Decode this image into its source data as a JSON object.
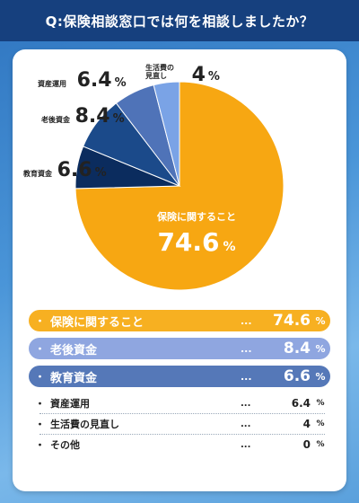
{
  "header": {
    "title": "Q:保険相談窓口では何を相談しましたか？"
  },
  "labels": {
    "percent": "%",
    "bullet": "・",
    "dots": "..."
  },
  "colors": {
    "header": "#16407e",
    "slices": [
      "#f7a712",
      "#4f73b8",
      "#133f7d",
      "#0b2c5e",
      "#4f73b8",
      "#7aa3e6",
      "#cfd8e6"
    ],
    "rows": [
      "#f7b021",
      "#8fa6e0",
      "#5578b8"
    ]
  },
  "chart_data": {
    "type": "pie",
    "slices": [
      {
        "label": "保険に関すること",
        "value": 74.6,
        "value_text": "74.6"
      },
      {
        "label": "教育資金",
        "value": 6.6,
        "value_text": "6.6"
      },
      {
        "label": "老後資金",
        "value": 8.4,
        "value_text": "8.4"
      },
      {
        "label": "資産運用",
        "value": 6.4,
        "value_text": "6.4"
      },
      {
        "label": "生活費の見直し",
        "value": 4,
        "value_text": "4"
      },
      {
        "label": "その他",
        "value": 0,
        "value_text": "0"
      }
    ],
    "outer_labels": {
      "asset": {
        "name": "資産運用",
        "value": "6.4"
      },
      "living": {
        "name": "生活費の見直し",
        "name_line1": "生活費の",
        "name_line2": "見直し",
        "value": "4"
      },
      "retire": {
        "name": "老後資金",
        "value": "8.4"
      },
      "edu": {
        "name": "教育資金",
        "value": "6.6"
      }
    },
    "inner_label": {
      "name": "保険に関すること",
      "value": "74.6"
    }
  },
  "legend": {
    "highlighted": [
      {
        "label": "保険に関すること",
        "value": "74.6"
      },
      {
        "label": "老後資金",
        "value": "8.4"
      },
      {
        "label": "教育資金",
        "value": "6.6"
      }
    ],
    "others": [
      {
        "label": "資産運用",
        "value": "6.4"
      },
      {
        "label": "生活費の見直し",
        "value": "4"
      },
      {
        "label": "その他",
        "value": "0"
      }
    ]
  }
}
